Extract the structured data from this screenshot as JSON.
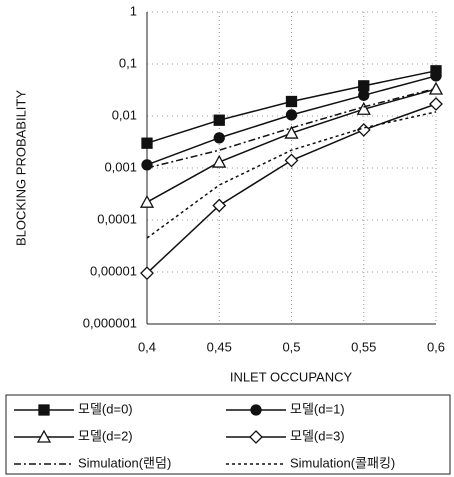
{
  "chart_data": {
    "type": "line",
    "x_label": "INLET OCCUPANCY",
    "y_label": "BLOCKING PROBABILITY",
    "x": [
      0.4,
      0.45,
      0.5,
      0.55,
      0.6
    ],
    "xlim": [
      0.4,
      0.6
    ],
    "xticks": [
      {
        "value": 0.4,
        "label": "0,4"
      },
      {
        "value": 0.45,
        "label": "0,45"
      },
      {
        "value": 0.5,
        "label": "0,5"
      },
      {
        "value": 0.55,
        "label": "0,55"
      },
      {
        "value": 0.6,
        "label": "0,6"
      }
    ],
    "ylim": [
      1e-06,
      1
    ],
    "yscale": "log",
    "yticks": [
      1,
      {
        "value": 0.1,
        "label": "0,1"
      },
      {
        "value": 0.01,
        "label": "0,01"
      },
      {
        "value": 0.001,
        "label": "0,001"
      },
      {
        "value": 0.0001,
        "label": "0,0001"
      },
      {
        "value": 1e-05,
        "label": "0,00001"
      },
      {
        "value": 1e-06,
        "label": "0,000001"
      }
    ],
    "grid": true,
    "legend": "bottom",
    "series": [
      {
        "name": "모델(d=0)",
        "color": "#111111",
        "marker": "square-filled",
        "dash": "solid",
        "values": [
          0.003,
          0.0083,
          0.019,
          0.038,
          0.074
        ]
      },
      {
        "name": "모델(d=1)",
        "color": "#111111",
        "marker": "circle-filled",
        "dash": "solid",
        "values": [
          0.00115,
          0.0038,
          0.0105,
          0.025,
          0.059
        ]
      },
      {
        "name": "모델(d=2)",
        "color": "#111111",
        "marker": "triangle-open",
        "dash": "solid",
        "values": [
          0.00022,
          0.0013,
          0.0047,
          0.0135,
          0.033
        ]
      },
      {
        "name": "모델(d=3)",
        "color": "#111111",
        "marker": "diamond-open",
        "dash": "solid",
        "values": [
          9.5e-06,
          0.00019,
          0.0014,
          0.0054,
          0.017
        ]
      },
      {
        "name": "Simulation(랜덤)",
        "color": "#111111",
        "marker": "none",
        "dash": "dashdot",
        "values": [
          0.001,
          0.0022,
          0.0059,
          0.015,
          0.034
        ]
      },
      {
        "name": "Simulation(콜패킹)",
        "color": "#111111",
        "marker": "none",
        "dash": "dotted",
        "values": [
          4.5e-05,
          0.00047,
          0.0022,
          0.0059,
          0.012
        ]
      }
    ]
  }
}
